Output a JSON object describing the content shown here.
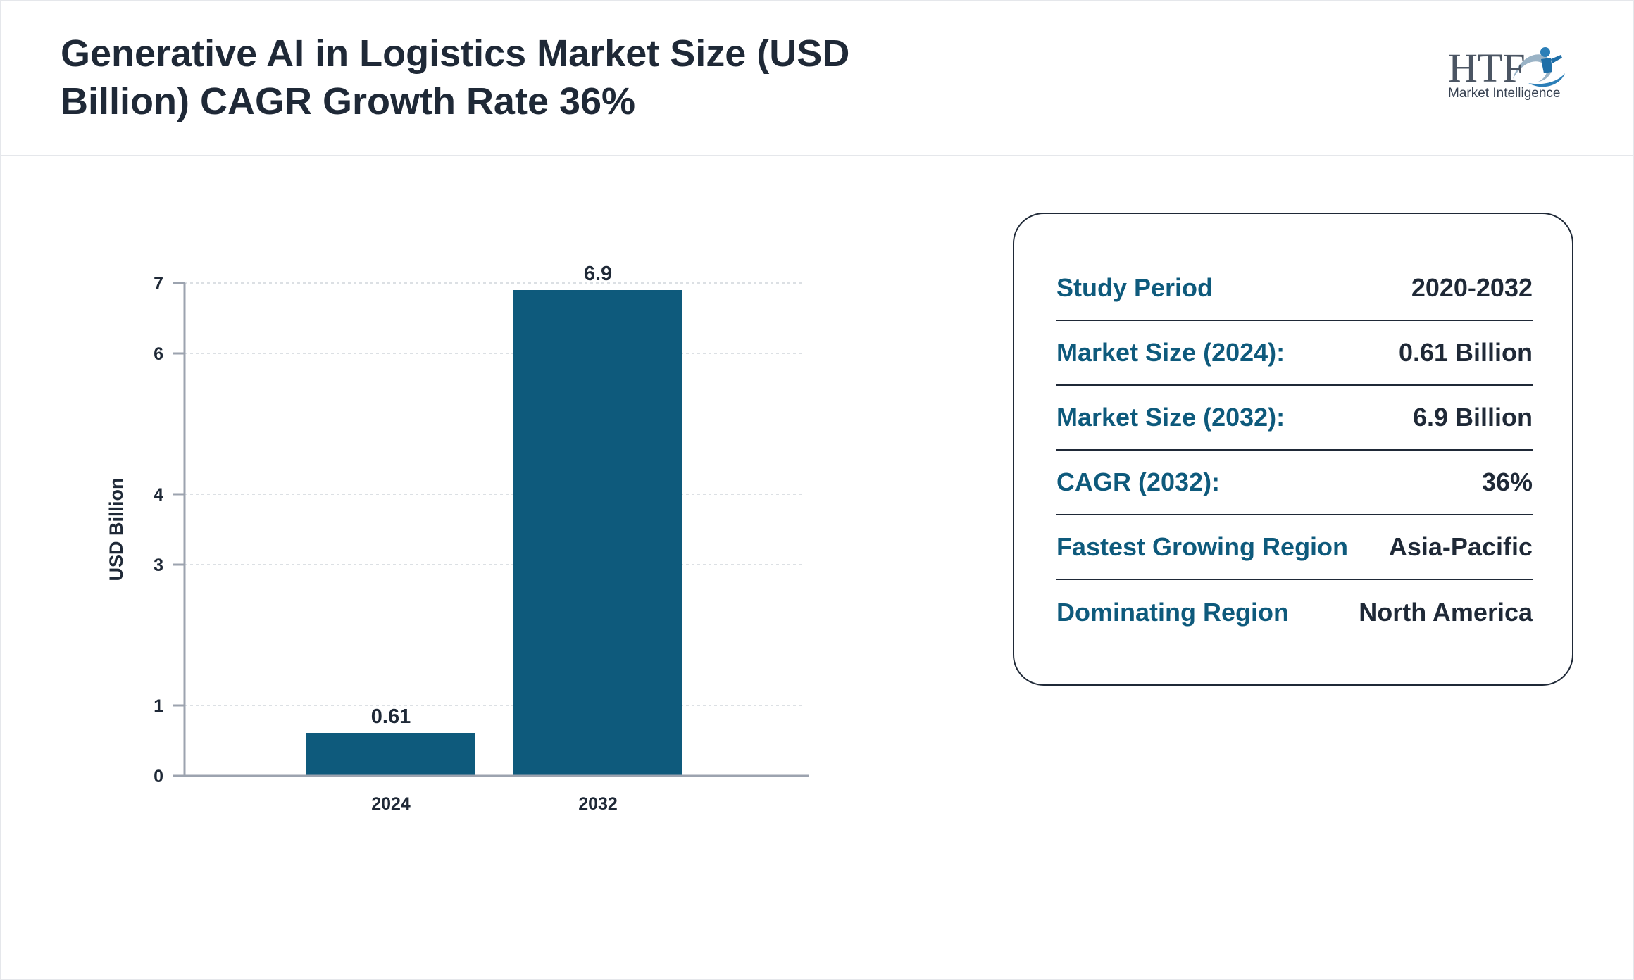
{
  "header": {
    "title": "Generative AI in Logistics Market Size (USD Billion) CAGR Growth Rate 36%",
    "logo": {
      "wordmark": "HTF",
      "tagline": "Market Intelligence",
      "icon": "swirl-figure-icon"
    }
  },
  "chart_data": {
    "type": "bar",
    "categories": [
      "2024",
      "2032"
    ],
    "values": [
      0.61,
      6.9
    ],
    "value_labels": [
      "0.61",
      "6.9"
    ],
    "ylabel": "USD Billion",
    "yticks": [
      0,
      1,
      3,
      4,
      6,
      7
    ],
    "ylim": [
      0,
      7
    ],
    "grid": true,
    "bar_color": "#0e5a7c"
  },
  "stats": [
    {
      "label": "Study Period",
      "value": "2020-2032"
    },
    {
      "label": "Market Size (2024):",
      "value": "0.61 Billion"
    },
    {
      "label": "Market Size (2032):",
      "value": "6.9 Billion"
    },
    {
      "label": "CAGR (2032):",
      "value": "36%"
    },
    {
      "label": "Fastest Growing Region",
      "value": "Asia-Pacific"
    },
    {
      "label": "Dominating Region",
      "value": "North America"
    }
  ],
  "colors": {
    "accent": "#0e5a7c",
    "text": "#1f2937",
    "grid": "#d1d5db",
    "axis": "#9ca3af"
  }
}
